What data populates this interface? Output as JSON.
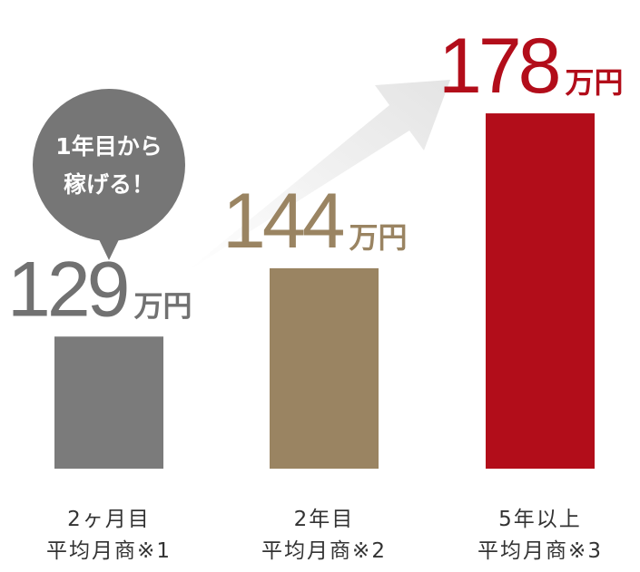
{
  "chart_data": {
    "type": "bar",
    "categories": [
      [
        "2ヶ月目",
        "平均月商※1"
      ],
      [
        "2年目",
        "平均月商※2"
      ],
      [
        "5年以上",
        "平均月商※3"
      ]
    ],
    "values": [
      129,
      144,
      178
    ],
    "unit": "万円",
    "colors": [
      "#7b7b7b",
      "#9a8462",
      "#b20d1a"
    ],
    "label_colors": [
      "#717171",
      "#9a8462",
      "#b20d1a"
    ],
    "ylim": [
      100,
      180
    ],
    "annotation": [
      "1年目から",
      "稼げる！"
    ]
  }
}
